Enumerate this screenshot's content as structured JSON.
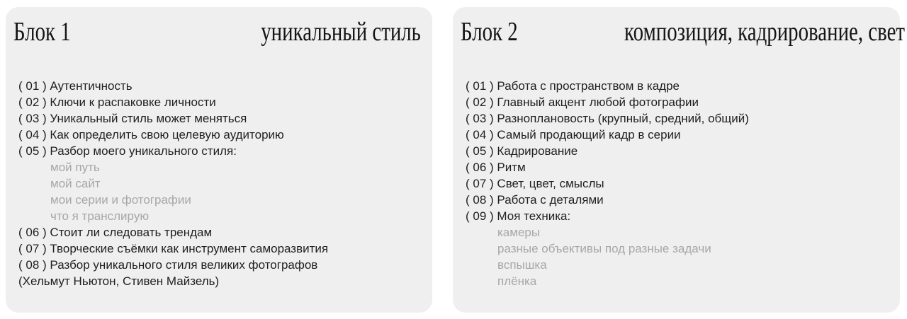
{
  "colors": {
    "page_bg": "#ffffff",
    "card_bg": "#efefef",
    "text": "#1f1f1f",
    "muted_text": "#a7a7a7",
    "header_text": "#141414"
  },
  "blocks": [
    {
      "label": "Блок 1",
      "title": "уникальный стиль",
      "items": [
        {
          "prefix": "( 01 )",
          "text": "Аутентичность"
        },
        {
          "prefix": "( 02 )",
          "text": "Ключи к распаковке личности"
        },
        {
          "prefix": "( 03 )",
          "text": "Уникальный стиль может меняться"
        },
        {
          "prefix": "( 04 )",
          "text": "Как определить свою целевую аудиторию"
        },
        {
          "prefix": "( 05 )",
          "text": "Разбор моего уникального стиля:"
        },
        {
          "text": "мой путь",
          "muted": true,
          "indent": true
        },
        {
          "text": "мой сайт",
          "muted": true,
          "indent": true
        },
        {
          "text": "мои серии и фотографии",
          "muted": true,
          "indent": true
        },
        {
          "text": "что я транслирую",
          "muted": true,
          "indent": true
        },
        {
          "prefix": "( 06 )",
          "text": "Стоит ли следовать трендам"
        },
        {
          "prefix": "( 07 )",
          "text": "Творческие съёмки как инструмент саморазвития"
        },
        {
          "prefix": "( 08 )",
          "text": "Разбор уникального стиля великих фотографов"
        },
        {
          "text": "(Хельмут Ньютон, Стивен Майзель)"
        }
      ]
    },
    {
      "label": "Блок 2",
      "title": "композиция, кадрирование, свет",
      "items": [
        {
          "prefix": "( 01 )",
          "text": "Работа с пространством в кадре"
        },
        {
          "prefix": "( 02 )",
          "text": "Главный акцент любой фотографии"
        },
        {
          "prefix": "( 03 )",
          "text": "Разноплановость (крупный, средний, общий)"
        },
        {
          "prefix": "( 04 )",
          "text": "Самый продающий кадр в серии"
        },
        {
          "prefix": "( 05 )",
          "text": "Кадрирование"
        },
        {
          "prefix": "( 06 )",
          "text": "Ритм"
        },
        {
          "prefix": "( 07 )",
          "text": "Свет, цвет, смыслы"
        },
        {
          "prefix": "( 08 )",
          "text": "Работа с деталями"
        },
        {
          "prefix": "( 09 )",
          "text": "Моя техника:"
        },
        {
          "text": "камеры",
          "muted": true,
          "indent": true
        },
        {
          "text": "разные объективы под разные задачи",
          "muted": true,
          "indent": true
        },
        {
          "text": "вспышка",
          "muted": true,
          "indent": true
        },
        {
          "text": "плёнка",
          "muted": true,
          "indent": true
        }
      ]
    }
  ]
}
